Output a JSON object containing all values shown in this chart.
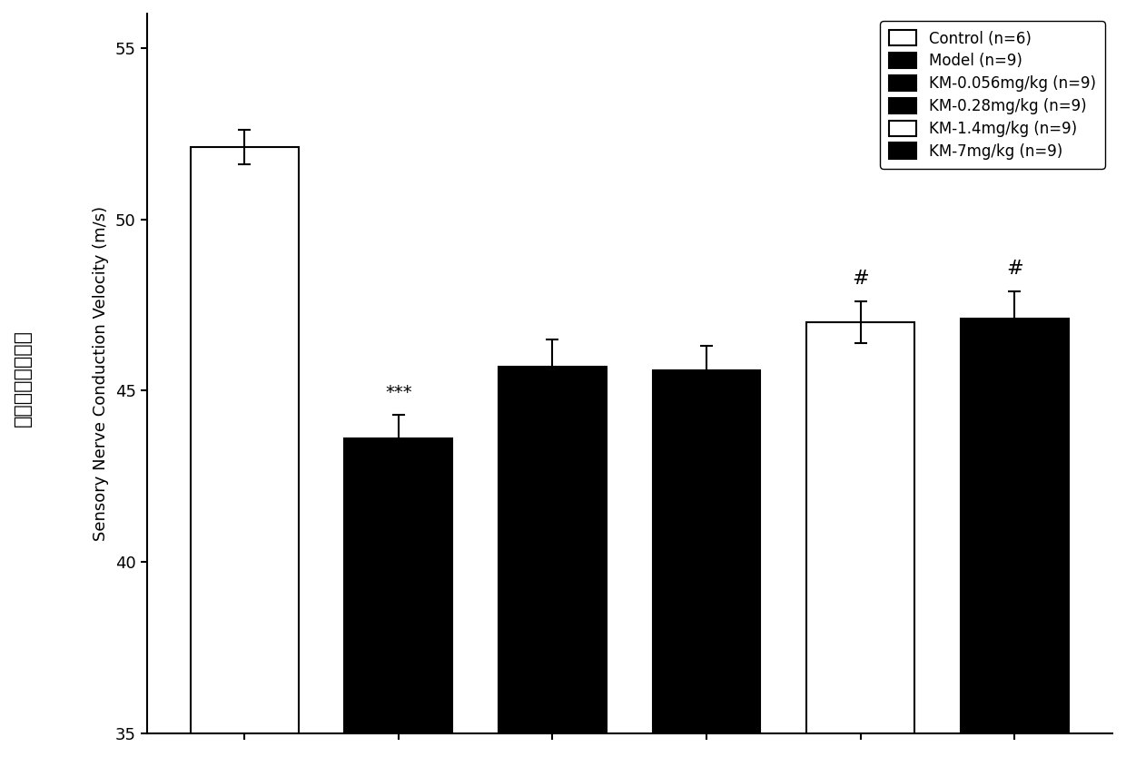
{
  "categories": [
    "Control\n(n=6)",
    "Model\n(n=9)",
    "KM-0.056mg/kg\n(n=9)",
    "KM-0.28mg/kg\n(n=9)",
    "KM-1.4mg/kg\n(n=9)",
    "KM-7mg/kg\n(n=9)"
  ],
  "values": [
    52.1,
    43.6,
    45.7,
    45.6,
    47.0,
    47.1
  ],
  "errors": [
    0.5,
    0.7,
    0.8,
    0.7,
    0.6,
    0.8
  ],
  "bar_colors": [
    "white",
    "black",
    "black",
    "black",
    "white",
    "black"
  ],
  "bar_edge_colors": [
    "black",
    "black",
    "black",
    "black",
    "black",
    "black"
  ],
  "ylim": [
    35,
    56
  ],
  "yticks": [
    35,
    40,
    45,
    50,
    55
  ],
  "ylabel_chinese": "坐骨神经传导速度",
  "ylabel_english": "Sensory Nerve Conduction Velocity (m/s)",
  "legend_labels": [
    "Control (n=6)",
    "Model (n=9)",
    "KM-0.056mg/kg (n=9)",
    "KM-0.28mg/kg (n=9)",
    "KM-1.4mg/kg (n=9)",
    "KM-7mg/kg (n=9)"
  ],
  "legend_colors": [
    "white",
    "black",
    "black",
    "black",
    "white",
    "black"
  ],
  "annotations": [
    {
      "text": "***",
      "bar_index": 1,
      "fontsize": 14
    },
    {
      "text": "#",
      "bar_index": 4,
      "fontsize": 16
    },
    {
      "text": "#",
      "bar_index": 5,
      "fontsize": 16
    }
  ],
  "background_color": "white",
  "bar_width": 0.7,
  "title_fontsize": 13,
  "axis_fontsize": 13,
  "tick_fontsize": 13,
  "legend_fontsize": 12
}
